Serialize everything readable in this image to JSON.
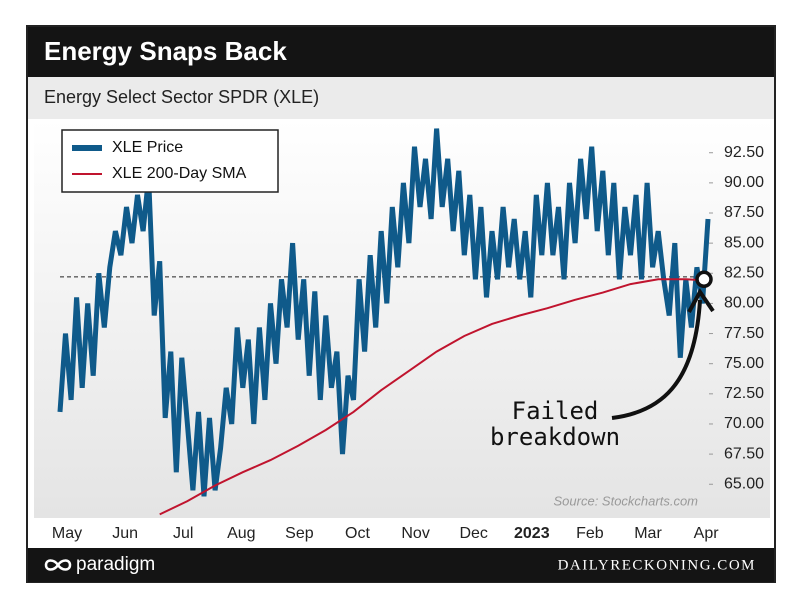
{
  "chart_data": {
    "type": "line",
    "title": "Energy Snaps Back",
    "subtitle": "Energy Select Sector SPDR (XLE)",
    "source": "Source: Stockcharts.com",
    "annotation": "Failed\nbreakdown",
    "brand_left": "paradigm",
    "brand_right": "DAILYRECKONING.COM",
    "xtick_labels": [
      "May",
      "Jun",
      "Jul",
      "Aug",
      "Sep",
      "Oct",
      "Nov",
      "Dec",
      "2023",
      "Feb",
      "Mar",
      "Apr"
    ],
    "reference_level": 82.2,
    "marker_value": 82,
    "ylim": [
      62.2,
      94.8
    ],
    "yticks": [
      {
        "value": 65,
        "label": "65.00"
      },
      {
        "value": 67.5,
        "label": "67.50"
      },
      {
        "value": 70,
        "label": "70.00"
      },
      {
        "value": 72.5,
        "label": "72.50"
      },
      {
        "value": 75,
        "label": "75.00"
      },
      {
        "value": 77.5,
        "label": "77.50"
      },
      {
        "value": 80,
        "label": "80.00"
      },
      {
        "value": 82.5,
        "label": "82.50"
      },
      {
        "value": 85,
        "label": "85.00"
      },
      {
        "value": 87.5,
        "label": "87.50"
      },
      {
        "value": 90,
        "label": "90.00"
      },
      {
        "value": 92.5,
        "label": "92.50"
      }
    ],
    "series": [
      {
        "name": "XLE Price",
        "color": "#0f5a8a",
        "values": [
          71,
          77.5,
          72,
          80.5,
          73,
          80,
          74,
          82.5,
          78,
          83,
          86,
          84,
          88,
          85,
          89,
          86,
          90.5,
          79,
          83.5,
          70.5,
          76,
          66,
          75.5,
          70,
          64.5,
          71,
          64,
          70.5,
          64.5,
          68,
          73,
          70,
          78,
          73,
          77,
          70,
          78,
          72,
          80,
          75,
          82,
          78,
          85,
          77,
          82,
          74,
          81,
          72,
          79,
          73,
          76,
          67.5,
          74,
          72,
          82,
          76,
          84,
          78,
          86,
          80,
          88,
          83,
          90,
          85,
          93,
          88,
          92,
          87,
          94.5,
          88,
          92,
          86,
          91,
          84,
          89,
          82,
          88,
          80.5,
          86,
          82,
          88,
          83,
          87,
          82,
          86,
          80.5,
          89,
          84,
          90,
          84,
          88,
          82,
          90,
          85,
          92,
          87,
          93,
          86,
          91,
          84,
          90,
          82,
          88,
          84,
          89,
          82,
          90,
          83,
          86,
          82,
          79,
          85,
          75.5,
          82,
          78,
          83,
          80,
          87
        ]
      },
      {
        "name": "XLE 200-Day SMA",
        "color": "#c0142e",
        "x": [
          18,
          23,
          28,
          33,
          38,
          43,
          48,
          53,
          58,
          63,
          68,
          73,
          78,
          83,
          88,
          93,
          98,
          103,
          108,
          113,
          117
        ],
        "values": [
          62.5,
          63.6,
          64.9,
          66.0,
          67.0,
          68.2,
          69.5,
          71.0,
          72.8,
          74.4,
          76.0,
          77.3,
          78.3,
          79.0,
          79.6,
          80.3,
          80.9,
          81.6,
          82.0,
          82.0,
          81.9
        ]
      }
    ]
  }
}
